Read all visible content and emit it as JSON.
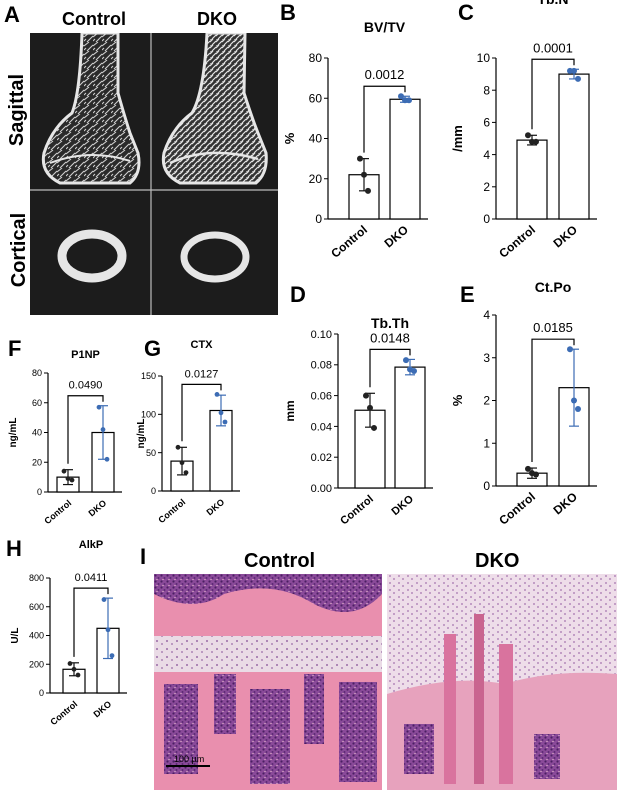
{
  "panel_a": {
    "label": "A",
    "col_labels": [
      "Control",
      "DKO"
    ],
    "row_labels": [
      "Sagittal",
      "Cortical"
    ]
  },
  "panel_i": {
    "label": "I",
    "col_labels": [
      "Control",
      "DKO"
    ],
    "scale_text": "100 µm"
  },
  "colors": {
    "bar_fill": "#ffffff",
    "bar_stroke": "#000000",
    "control_points": "#222222",
    "dko_points": "#3c6cb4",
    "microct_bg": "#1c1c1c",
    "microct_bone": "#e6e6e6",
    "he_stroma": "#f2c6d2",
    "he_bone": "#e98fae",
    "he_marrow": "#7a3d8c",
    "he_cartilage": "#eadbe6"
  },
  "chart_data": [
    {
      "id": "B",
      "type": "bar",
      "title": "BV/TV",
      "ylabel": "%",
      "categories": [
        "Control",
        "DKO"
      ],
      "ylim": [
        0,
        80
      ],
      "yticks": [
        "0",
        "20",
        "40",
        "60",
        "80"
      ],
      "ytick_values": [
        0,
        20,
        40,
        60,
        80
      ],
      "means": [
        22,
        59.5
      ],
      "sd": [
        8,
        1.5
      ],
      "points": [
        [
          30,
          22,
          14
        ],
        [
          61,
          59,
          59
        ]
      ],
      "p_value": "0.0012"
    },
    {
      "id": "C",
      "type": "bar",
      "title": "Tb.N",
      "ylabel": "/mm",
      "categories": [
        "Control",
        "DKO"
      ],
      "ylim": [
        0,
        10
      ],
      "yticks": [
        "0",
        "2",
        "4",
        "6",
        "8",
        "10"
      ],
      "ytick_values": [
        0,
        2,
        4,
        6,
        8,
        10
      ],
      "means": [
        4.9,
        9.0
      ],
      "sd": [
        0.3,
        0.3
      ],
      "points": [
        [
          5.2,
          4.8,
          4.8
        ],
        [
          9.2,
          9.2,
          8.7
        ]
      ],
      "p_value": "0.0001"
    },
    {
      "id": "D",
      "type": "bar",
      "title": "Tb.Th",
      "ylabel": "mm",
      "categories": [
        "Control",
        "DKO"
      ],
      "ylim": [
        0,
        0.1
      ],
      "yticks": [
        "0.00",
        "0.02",
        "0.04",
        "0.06",
        "0.08",
        "0.10"
      ],
      "ytick_values": [
        0,
        0.02,
        0.04,
        0.06,
        0.08,
        0.1
      ],
      "means": [
        0.0505,
        0.0785
      ],
      "sd": [
        0.011,
        0.005
      ],
      "points": [
        [
          0.06,
          0.052,
          0.039
        ],
        [
          0.083,
          0.077,
          0.076
        ]
      ],
      "p_value": "0.0148"
    },
    {
      "id": "E",
      "type": "bar",
      "title": "Ct.Po",
      "ylabel": "%",
      "categories": [
        "Control",
        "DKO"
      ],
      "ylim": [
        0,
        4
      ],
      "yticks": [
        "0",
        "1",
        "2",
        "3",
        "4"
      ],
      "ytick_values": [
        0,
        1,
        2,
        3,
        4
      ],
      "means": [
        0.3,
        2.3
      ],
      "sd": [
        0.12,
        0.9
      ],
      "points": [
        [
          0.4,
          0.3,
          0.27
        ],
        [
          3.2,
          2.0,
          1.8
        ]
      ],
      "p_value": "0.0185"
    },
    {
      "id": "F",
      "type": "bar",
      "title": "P1NP",
      "ylabel": "ng/mL",
      "categories": [
        "Control",
        "DKO"
      ],
      "ylim": [
        0,
        80
      ],
      "yticks": [
        "0",
        "20",
        "40",
        "60",
        "80"
      ],
      "ytick_values": [
        0,
        20,
        40,
        60,
        80
      ],
      "means": [
        10,
        40
      ],
      "sd": [
        5,
        18
      ],
      "points": [
        [
          14,
          9,
          8
        ],
        [
          57,
          42,
          22
        ]
      ],
      "p_value": "0.0490"
    },
    {
      "id": "G",
      "type": "bar",
      "title": "CTX",
      "ylabel": "ng/mL",
      "categories": [
        "Control",
        "DKO"
      ],
      "ylim": [
        0,
        150
      ],
      "yticks": [
        "0",
        "50",
        "100",
        "150"
      ],
      "ytick_values": [
        0,
        50,
        100,
        150
      ],
      "means": [
        39,
        105
      ],
      "sd": [
        18,
        20
      ],
      "points": [
        [
          57,
          37,
          24
        ],
        [
          126,
          102,
          90
        ]
      ],
      "p_value": "0.0127"
    },
    {
      "id": "H",
      "type": "bar",
      "title": "AlkP",
      "ylabel": "U/L",
      "categories": [
        "Control",
        "DKO"
      ],
      "ylim": [
        0,
        800
      ],
      "yticks": [
        "0",
        "200",
        "400",
        "600",
        "800"
      ],
      "ytick_values": [
        0,
        200,
        400,
        600,
        800
      ],
      "means": [
        165,
        450
      ],
      "sd": [
        45,
        210
      ],
      "points": [
        [
          205,
          165,
          125
        ],
        [
          650,
          440,
          260
        ]
      ],
      "p_value": "0.0411"
    }
  ]
}
